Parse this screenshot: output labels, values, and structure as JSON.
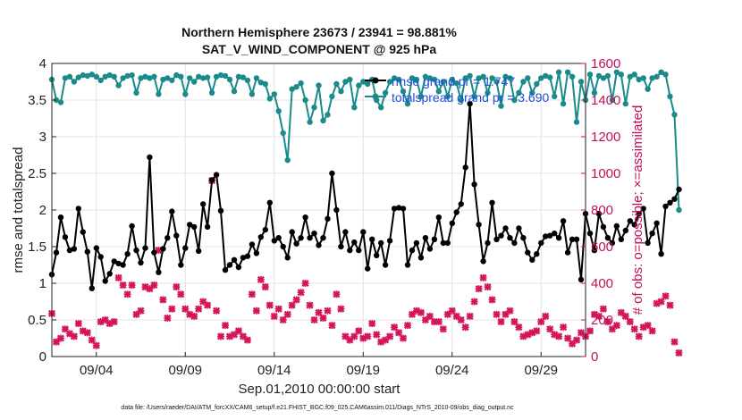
{
  "chart_data": {
    "type": "line",
    "title": "Northern Hemisphere 23673 / 23941 = 98.881%",
    "subtitle": "SAT_V_WIND_COMPONENT @ 925 hPa",
    "xlabel": "Sep.01,2010 00:00:00 start",
    "ylabel": "rmse and totalspread",
    "ylabel_right": "# of obs: o=possible; ×=assimilated",
    "x_start_day": 0.5,
    "x_step_days": 0.25,
    "xlim": [
      0.5,
      30.5
    ],
    "ylim": [
      0,
      4
    ],
    "ylim_right": [
      0,
      1600
    ],
    "xticks": [
      {
        "day": 3,
        "label": "09/04"
      },
      {
        "day": 8,
        "label": "09/09"
      },
      {
        "day": 13,
        "label": "09/14"
      },
      {
        "day": 18,
        "label": "09/19"
      },
      {
        "day": 23,
        "label": "09/24"
      },
      {
        "day": 28,
        "label": "09/29"
      }
    ],
    "yticks": [
      "0",
      "0.5",
      "1",
      "1.5",
      "2",
      "2.5",
      "3",
      "3.5",
      "4"
    ],
    "yticks_right": [
      "0",
      "200",
      "400",
      "600",
      "800",
      "1000",
      "1200",
      "1400",
      "1600"
    ],
    "grid": true,
    "legend_position": "top-right",
    "footnote": "data file: /Users/raeder/DAI/ATM_forcXX/CAM6_setup/f.e21.FHIST_BGC.f09_025.CAM6assim.011/Diags_NTrS_2010-09/obs_diag_output.nc",
    "colors": {
      "rmse": "#000000",
      "spread": "#1a8a8a",
      "obs": "#d4145a",
      "legend_text": "#1f4fd6",
      "right_axis": "#c0105a"
    },
    "series": [
      {
        "name": "rmse grand pr = 1.747",
        "axis": "left",
        "values": [
          1.12,
          1.42,
          1.9,
          1.63,
          1.45,
          1.47,
          2.02,
          1.7,
          1.43,
          0.93,
          1.48,
          1.36,
          1.03,
          1.13,
          1.3,
          1.27,
          1.25,
          1.4,
          1.78,
          1.45,
          1.28,
          1.48,
          2.72,
          1.42,
          1.15,
          1.47,
          1.62,
          1.98,
          1.65,
          1.25,
          1.48,
          1.8,
          1.77,
          1.44,
          2.08,
          1.77,
          2.41,
          2.48,
          1.99,
          1.18,
          1.25,
          1.32,
          1.22,
          1.35,
          1.37,
          1.53,
          1.41,
          1.63,
          1.73,
          2.1,
          1.58,
          1.62,
          1.5,
          1.35,
          1.7,
          1.54,
          1.62,
          1.9,
          1.62,
          1.68,
          1.52,
          1.62,
          1.88,
          2.5,
          2.0,
          1.5,
          1.7,
          1.45,
          1.56,
          1.45,
          1.7,
          1.2,
          1.6,
          1.38,
          1.55,
          1.25,
          1.58,
          2.02,
          2.03,
          2.02,
          1.25,
          1.45,
          1.55,
          1.35,
          1.62,
          1.47,
          1.6,
          1.9,
          1.55,
          1.55,
          1.82,
          1.97,
          2.08,
          2.58,
          3.45,
          2.35,
          1.8,
          1.3,
          1.55,
          2.1,
          1.6,
          1.65,
          1.75,
          1.62,
          1.55,
          1.75,
          1.62,
          1.42,
          1.32,
          1.4,
          1.55,
          1.64,
          1.65,
          1.68,
          1.62,
          1.85,
          1.42,
          1.6,
          1.6,
          1.05,
          1.95,
          1.68,
          1.45,
          1.95,
          1.77,
          1.62,
          1.55,
          1.78,
          1.6,
          1.72,
          1.85,
          1.8,
          1.95,
          2.02,
          1.55,
          1.68,
          1.82,
          1.4,
          2.05,
          2.1,
          2.15,
          2.28
        ]
      },
      {
        "name": "totalspread grand pr = 3.690",
        "axis": "left",
        "values": [
          3.78,
          3.5,
          3.47,
          3.8,
          3.82,
          3.75,
          3.81,
          3.84,
          3.83,
          3.85,
          3.82,
          3.77,
          3.82,
          3.84,
          3.82,
          3.7,
          3.8,
          3.83,
          3.84,
          3.6,
          3.8,
          3.82,
          3.8,
          3.82,
          3.58,
          3.78,
          3.8,
          3.77,
          3.84,
          3.82,
          3.58,
          3.8,
          3.75,
          3.82,
          3.8,
          3.81,
          3.6,
          3.82,
          3.84,
          3.83,
          3.78,
          3.62,
          3.82,
          3.81,
          3.77,
          3.58,
          3.8,
          3.74,
          3.72,
          3.52,
          3.58,
          3.35,
          3.05,
          2.68,
          3.65,
          3.68,
          3.73,
          3.5,
          3.2,
          3.4,
          3.7,
          3.22,
          3.3,
          3.55,
          3.72,
          3.62,
          3.75,
          3.78,
          3.4,
          3.7,
          3.75,
          3.72,
          3.78,
          3.5,
          3.4,
          3.6,
          3.75,
          3.8,
          3.78,
          3.62,
          3.45,
          3.8,
          3.78,
          3.55,
          3.82,
          3.8,
          3.78,
          3.62,
          3.75,
          3.55,
          3.78,
          3.73,
          3.5,
          3.8,
          3.83,
          3.55,
          3.8,
          3.82,
          3.6,
          3.8,
          3.75,
          3.42,
          3.82,
          3.8,
          3.5,
          3.6,
          3.75,
          3.8,
          3.6,
          3.72,
          3.8,
          3.83,
          3.81,
          3.55,
          3.88,
          3.45,
          3.88,
          3.82,
          3.2,
          3.75,
          3.5,
          3.85,
          3.6,
          3.83,
          3.8,
          3.83,
          3.5,
          3.88,
          3.85,
          3.45,
          3.82,
          3.85,
          3.78,
          3.8,
          3.65,
          3.8,
          3.82,
          3.88,
          3.85,
          3.55,
          3.3,
          2.0
        ]
      },
      {
        "name": "obs assimilated",
        "axis": "right",
        "marker": "x",
        "values": [
          235,
          80,
          100,
          150,
          125,
          110,
          180,
          140,
          130,
          90,
          60,
          190,
          200,
          180,
          190,
          430,
          390,
          340,
          390,
          230,
          250,
          380,
          370,
          390,
          580,
          310,
          210,
          260,
          380,
          340,
          260,
          230,
          220,
          260,
          300,
          280,
          960,
          250,
          110,
          170,
          110,
          120,
          140,
          110,
          90,
          340,
          250,
          420,
          380,
          280,
          220,
          260,
          200,
          230,
          280,
          310,
          350,
          400,
          280,
          200,
          240,
          210,
          250,
          170,
          340,
          260,
          110,
          90,
          110,
          140,
          100,
          110,
          180,
          120,
          80,
          90,
          110,
          160,
          130,
          100,
          170,
          230,
          250,
          240,
          200,
          220,
          190,
          190,
          150,
          230,
          250,
          220,
          200,
          160,
          220,
          300,
          370,
          430,
          380,
          310,
          230,
          190,
          230,
          250,
          190,
          160,
          110,
          120,
          130,
          140,
          190,
          220,
          150,
          120,
          110,
          160,
          100,
          70,
          90,
          130,
          110,
          140,
          230,
          220,
          260,
          190,
          150,
          170,
          240,
          220,
          190,
          150,
          110,
          160,
          170,
          140,
          290,
          300,
          330,
          280,
          80,
          20
        ]
      }
    ]
  }
}
